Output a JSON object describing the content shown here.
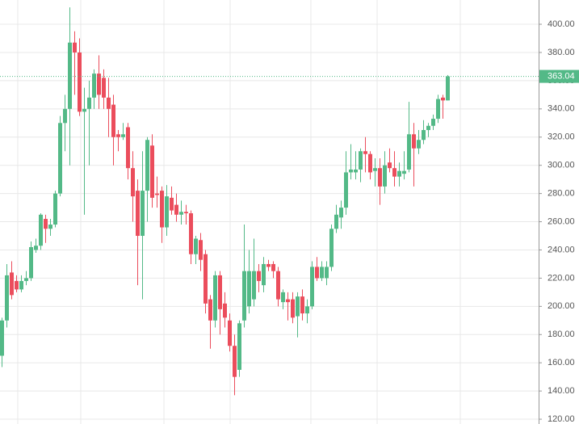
{
  "chart_data": {
    "type": "candlestick",
    "up_color": "#53b987",
    "down_color": "#eb4d5c",
    "ylim": [
      116.6,
      417.2
    ],
    "yticks": [
      {
        "value": 120,
        "label": "120.00"
      },
      {
        "value": 140,
        "label": "140.00"
      },
      {
        "value": 160,
        "label": "160.00"
      },
      {
        "value": 180,
        "label": "180.00"
      },
      {
        "value": 200,
        "label": "200.00"
      },
      {
        "value": 220,
        "label": "220.00"
      },
      {
        "value": 240,
        "label": "240.00"
      },
      {
        "value": 260,
        "label": "260.00"
      },
      {
        "value": 280,
        "label": "280.00"
      },
      {
        "value": 300,
        "label": "300.00"
      },
      {
        "value": 320,
        "label": "320.00"
      },
      {
        "value": 340,
        "label": "340.00"
      },
      {
        "value": 360,
        "label": "360.00"
      },
      {
        "value": 380,
        "label": "380.00"
      },
      {
        "value": 400,
        "label": "400.00"
      }
    ],
    "grid": true,
    "last_price": 363.04,
    "open": [
      165,
      190,
      224,
      218,
      212,
      218,
      220,
      240,
      243,
      262,
      255,
      258,
      280,
      330,
      340,
      387,
      380,
      338,
      340,
      348,
      365,
      362,
      348,
      343,
      322,
      320,
      327,
      298,
      282,
      250,
      282,
      314,
      280,
      282,
      256,
      277,
      272,
      265,
      267,
      266,
      237,
      247,
      237,
      205,
      190,
      222,
      202,
      190,
      172,
      155,
      190,
      200,
      205,
      225,
      215,
      230,
      230,
      225,
      203,
      205,
      205,
      193,
      207,
      195,
      200,
      228,
      220,
      220,
      228,
      255,
      263,
      270,
      295,
      295,
      297,
      310,
      308,
      296,
      298,
      285,
      302,
      298,
      292,
      294,
      297,
      322,
      312,
      318,
      325,
      328,
      333,
      348,
      346
    ],
    "high": [
      192,
      230,
      232,
      222,
      222,
      225,
      246,
      248,
      266,
      265,
      262,
      282,
      335,
      350,
      412,
      395,
      390,
      355,
      360,
      368,
      378,
      368,
      362,
      350,
      325,
      330,
      330,
      310,
      290,
      310,
      320,
      322,
      292,
      285,
      286,
      285,
      280,
      275,
      272,
      268,
      250,
      252,
      240,
      208,
      225,
      225,
      210,
      195,
      180,
      190,
      258,
      240,
      248,
      230,
      235,
      233,
      232,
      228,
      212,
      210,
      210,
      210,
      212,
      205,
      232,
      235,
      232,
      232,
      258,
      272,
      275,
      310,
      315,
      310,
      312,
      320,
      310,
      305,
      305,
      310,
      312,
      310,
      302,
      310,
      345,
      330,
      325,
      332,
      330,
      336,
      350,
      350,
      364
    ],
    "low": [
      157,
      185,
      205,
      210,
      210,
      215,
      218,
      238,
      240,
      245,
      250,
      256,
      278,
      310,
      300,
      350,
      335,
      265,
      300,
      340,
      340,
      340,
      320,
      300,
      310,
      318,
      290,
      260,
      215,
      205,
      260,
      270,
      270,
      245,
      250,
      265,
      260,
      258,
      258,
      230,
      230,
      225,
      195,
      170,
      185,
      180,
      185,
      168,
      137,
      150,
      185,
      195,
      200,
      210,
      210,
      225,
      220,
      200,
      198,
      190,
      188,
      178,
      190,
      188,
      198,
      218,
      218,
      215,
      225,
      252,
      255,
      265,
      290,
      290,
      288,
      295,
      290,
      285,
      272,
      280,
      295,
      285,
      285,
      290,
      295,
      285,
      308,
      315,
      320,
      325,
      330,
      333,
      346
    ],
    "close": [
      190,
      222,
      208,
      212,
      218,
      220,
      242,
      243,
      265,
      255,
      258,
      280,
      330,
      340,
      387,
      380,
      338,
      340,
      348,
      365,
      350,
      348,
      340,
      320,
      320,
      322,
      298,
      278,
      250,
      282,
      318,
      277,
      279,
      256,
      278,
      268,
      265,
      267,
      266,
      237,
      248,
      233,
      202,
      190,
      222,
      198,
      192,
      172,
      150,
      188,
      225,
      225,
      225,
      218,
      230,
      228,
      225,
      205,
      210,
      203,
      192,
      207,
      195,
      200,
      228,
      220,
      228,
      228,
      255,
      265,
      270,
      295,
      297,
      297,
      310,
      308,
      295,
      298,
      285,
      300,
      298,
      292,
      296,
      296,
      322,
      312,
      318,
      325,
      328,
      333,
      347,
      346,
      363.04
    ]
  }
}
